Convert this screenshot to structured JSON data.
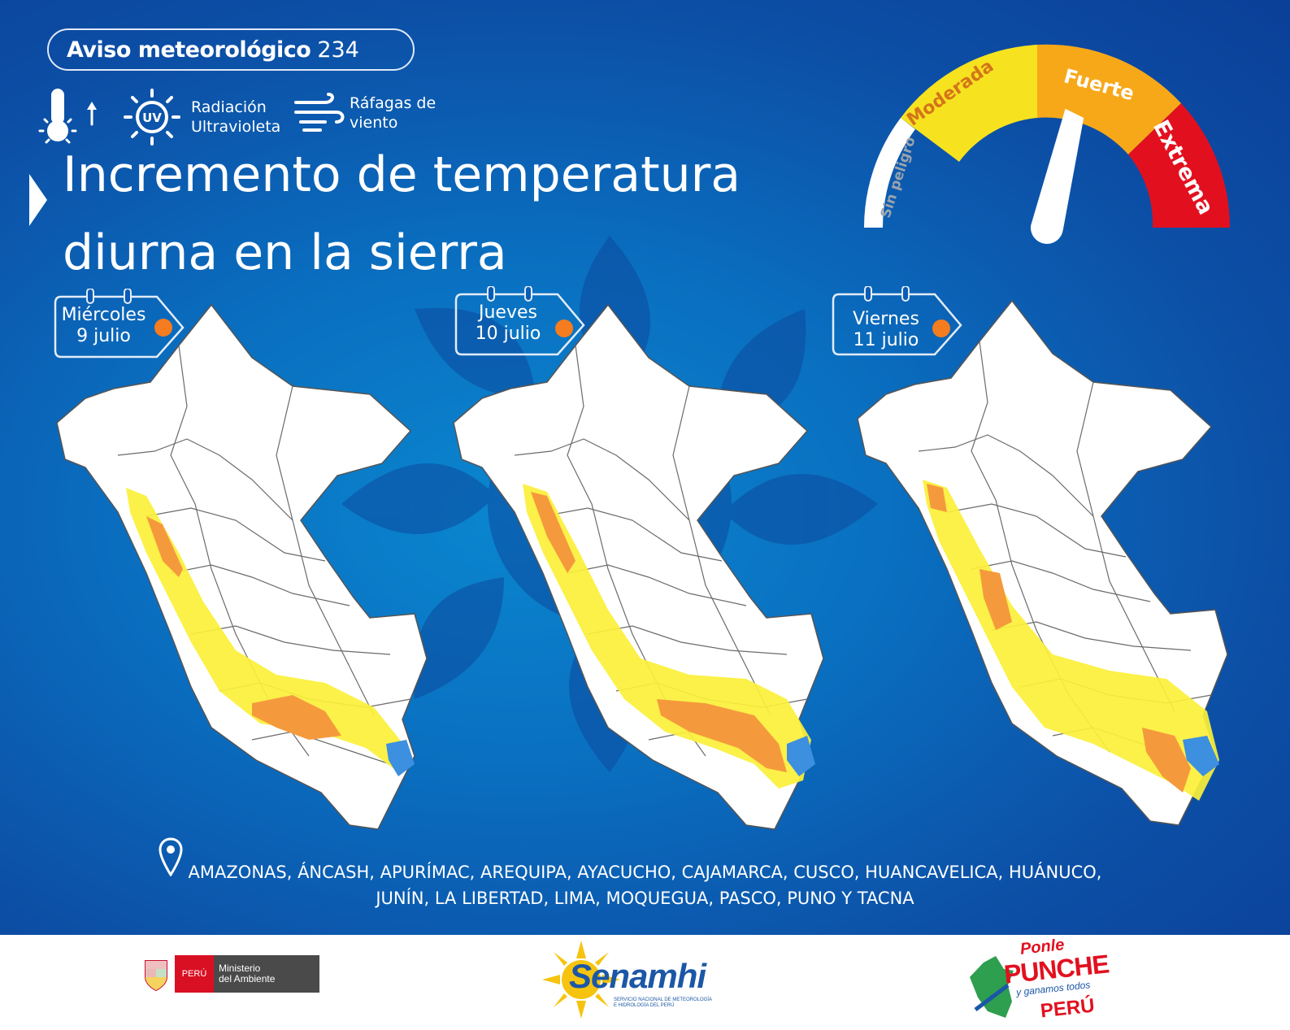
{
  "header": {
    "notice_label": "Aviso meteorológico",
    "notice_number": "234",
    "icons": [
      {
        "name": "temperature-rise-icon",
        "label": ""
      },
      {
        "name": "uv-radiation-icon",
        "label_line1": "Radiación",
        "label_line2": "Ultravioleta"
      },
      {
        "name": "wind-gusts-icon",
        "label_line1": "Ráfagas de",
        "label_line2": "viento"
      }
    ],
    "title_line1": "Incremento de temperatura",
    "title_line2": "diurna en la sierra"
  },
  "gauge": {
    "levels": [
      {
        "label": "Sin peligro",
        "color": "#ffffff"
      },
      {
        "label": "Moderada",
        "color": "#f6e21f"
      },
      {
        "label": "Fuerte",
        "color": "#f7a819"
      },
      {
        "label": "Extrema",
        "color": "#e2101f"
      }
    ],
    "needle_level": "Fuerte"
  },
  "days": [
    {
      "weekday": "Miércoles",
      "date": "9 julio",
      "alert_color": "#f57c1f"
    },
    {
      "weekday": "Jueves",
      "date": "10 julio",
      "alert_color": "#f57c1f"
    },
    {
      "weekday": "Viernes",
      "date": "11 julio",
      "alert_color": "#f57c1f"
    }
  ],
  "map_legend_colors": {
    "moderate": "#fbf03a",
    "strong": "#f59a3c",
    "lake": "#3d8fe0",
    "land": "#ffffff",
    "background": "#0b5cb5"
  },
  "regions": {
    "line1": "AMAZONAS, ÁNCASH, APURÍMAC, AREQUIPA, AYACUCHO, CAJAMARCA, CUSCO, HUANCAVELICA, HUÁNUCO,",
    "line2": "JUNÍN, LA LIBERTAD, LIMA, MOQUEGUA, PASCO, PUNO Y TACNA"
  },
  "footer": {
    "ministry_flag_text": "PERÚ",
    "ministry_line1": "Ministerio",
    "ministry_line2": "del Ambiente",
    "senamhi_name": "Senamhi",
    "senamhi_sub1": "SERVICIO NACIONAL DE METEOROLOGÍA",
    "senamhi_sub2": "E HIDROLOGÍA DEL PERÚ",
    "campaign_line1": "Ponle",
    "campaign_line2": "PUNCHE",
    "campaign_line3": "y ganamos todos",
    "campaign_line4": "PERÚ"
  }
}
